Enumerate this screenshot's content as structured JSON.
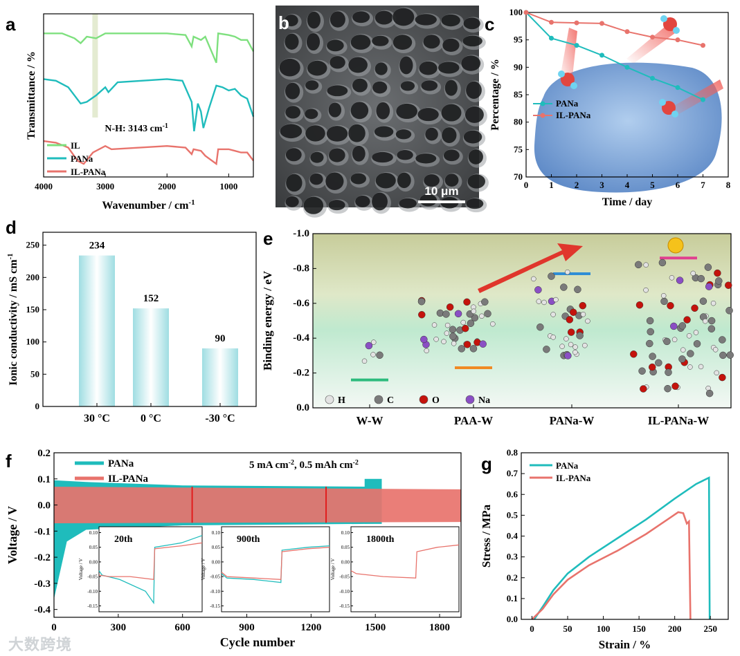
{
  "watermark": "大数跨境",
  "chart_data": [
    {
      "panel": "a",
      "type": "line",
      "xlabel": "Wavenumber / cm-1",
      "ylabel": "Transmittance / %",
      "x_ticks": [
        "4000",
        "3000",
        "2000",
        "1000"
      ],
      "xlim": [
        4000,
        600
      ],
      "annotation": "N-H: 3143 cm-1",
      "annotation_wavenumber": 3143,
      "legend": [
        "IL",
        "PANa",
        "IL-PANa"
      ],
      "colors": [
        "#7ee07e",
        "#1fbcbc",
        "#e8736c"
      ],
      "series": [
        {
          "name": "IL",
          "points": [
            [
              4000,
              88
            ],
            [
              3700,
              88
            ],
            [
              3500,
              85
            ],
            [
              3400,
              82
            ],
            [
              3300,
              86
            ],
            [
              3150,
              85
            ],
            [
              3000,
              88
            ],
            [
              2000,
              88
            ],
            [
              1700,
              87
            ],
            [
              1600,
              80
            ],
            [
              1570,
              86
            ],
            [
              1450,
              84
            ],
            [
              1380,
              86
            ],
            [
              1200,
              70
            ],
            [
              1170,
              88
            ],
            [
              1000,
              87
            ],
            [
              900,
              86
            ],
            [
              800,
              84
            ],
            [
              700,
              84
            ],
            [
              600,
              77
            ]
          ]
        },
        {
          "name": "PANa",
          "points": [
            [
              4000,
              60
            ],
            [
              3800,
              59
            ],
            [
              3600,
              55
            ],
            [
              3400,
              45
            ],
            [
              3300,
              46
            ],
            [
              3150,
              50
            ],
            [
              3000,
              55
            ],
            [
              2950,
              52
            ],
            [
              2800,
              58
            ],
            [
              2000,
              60
            ],
            [
              1750,
              59
            ],
            [
              1600,
              46
            ],
            [
              1560,
              28
            ],
            [
              1500,
              45
            ],
            [
              1450,
              40
            ],
            [
              1410,
              30
            ],
            [
              1320,
              42
            ],
            [
              1200,
              56
            ],
            [
              1100,
              55
            ],
            [
              1000,
              53
            ],
            [
              900,
              54
            ],
            [
              800,
              50
            ],
            [
              700,
              48
            ],
            [
              600,
              37
            ]
          ]
        },
        {
          "name": "IL-PANa",
          "points": [
            [
              4000,
              22
            ],
            [
              3800,
              21
            ],
            [
              3600,
              18
            ],
            [
              3450,
              10
            ],
            [
              3350,
              8
            ],
            [
              3200,
              15
            ],
            [
              3000,
              19
            ],
            [
              2900,
              17
            ],
            [
              2000,
              19
            ],
            [
              1700,
              18
            ],
            [
              1600,
              14
            ],
            [
              1570,
              17
            ],
            [
              1450,
              16
            ],
            [
              1380,
              13
            ],
            [
              1200,
              8
            ],
            [
              1170,
              17
            ],
            [
              1000,
              17
            ],
            [
              900,
              16
            ],
            [
              800,
              15
            ],
            [
              700,
              15
            ],
            [
              600,
              10
            ]
          ]
        }
      ]
    },
    {
      "panel": "b",
      "type": "image",
      "scale_label": "10 μm"
    },
    {
      "panel": "c",
      "type": "line",
      "xlabel": "Time / day",
      "ylabel": "Percentage / %",
      "xlim": [
        0,
        8
      ],
      "ylim": [
        70,
        100
      ],
      "x_ticks": [
        "0",
        "1",
        "2",
        "3",
        "4",
        "5",
        "6",
        "7",
        "8"
      ],
      "y_ticks": [
        "70",
        "75",
        "80",
        "85",
        "90",
        "95",
        "100"
      ],
      "legend": [
        "PANa",
        "IL-PANa"
      ],
      "colors": [
        "#1fbcbc",
        "#e8736c"
      ],
      "series": [
        {
          "name": "PANa",
          "x": [
            0,
            1,
            2,
            3,
            4,
            5,
            6,
            7
          ],
          "values": [
            100,
            95.3,
            94,
            92.2,
            90,
            88,
            86.3,
            84.1
          ]
        },
        {
          "name": "IL-PANa",
          "x": [
            0,
            1,
            2,
            3,
            4,
            5,
            6,
            7
          ],
          "values": [
            100,
            98.2,
            98.1,
            98,
            96.5,
            95.5,
            95,
            94
          ]
        }
      ]
    },
    {
      "panel": "d",
      "type": "bar",
      "ylabel": "Ionic conductivity / mS cm-1",
      "ylim": [
        0,
        270
      ],
      "y_ticks": [
        "0",
        "50",
        "100",
        "150",
        "200",
        "250"
      ],
      "categories": [
        "30 °C",
        "0 °C",
        "-30 °C"
      ],
      "values": [
        234,
        152,
        90
      ],
      "value_labels": [
        "234",
        "152",
        "90"
      ],
      "color": "#a8e3e6"
    },
    {
      "panel": "e",
      "type": "scatter",
      "ylabel": "Binding energy / eV",
      "ylim": [
        0,
        -1.0
      ],
      "y_ticks": [
        "0.0",
        "-0.2",
        "-0.4",
        "-0.6",
        "-0.8",
        "-1.0"
      ],
      "categories": [
        "W-W",
        "PAA-W",
        "PANa-W",
        "IL-PANa-W"
      ],
      "values": [
        -0.16,
        -0.23,
        -0.77,
        -0.86
      ],
      "colors": [
        "#2dbb7d",
        "#f08a24",
        "#2f8ed6",
        "#e0408f"
      ],
      "atom_legend": [
        "H",
        "C",
        "O",
        "Na"
      ],
      "atom_colors": [
        "#e3e3e3",
        "#7a7a7a",
        "#c4130c",
        "#8a4fc4"
      ]
    },
    {
      "panel": "f",
      "type": "line",
      "xlabel": "Cycle number",
      "ylabel": "Voltage / V",
      "xlim": [
        0,
        1900
      ],
      "ylim": [
        -0.43,
        0.2
      ],
      "x_ticks": [
        "0",
        "300",
        "600",
        "900",
        "1200",
        "1500",
        "1800"
      ],
      "y_ticks": [
        "0.2",
        "0.1",
        "0.0",
        "-0.1",
        "-0.2",
        "-0.3",
        "-0.4"
      ],
      "legend": [
        "PANa",
        "IL-PANa"
      ],
      "colors": [
        "#1fbcbc",
        "#e8736c"
      ],
      "condition": "5 mA cm-2, 0.5 mAh cm-2",
      "series": [
        {
          "name": "PANa",
          "end_cycle": 1530,
          "upper": [
            [
              0,
              0.095
            ],
            [
              150,
              0.088
            ],
            [
              600,
              0.075
            ],
            [
              1500,
              0.07
            ]
          ],
          "lower": [
            [
              0,
              -0.36
            ],
            [
              60,
              -0.14
            ],
            [
              150,
              -0.095
            ],
            [
              600,
              -0.078
            ],
            [
              1500,
              -0.072
            ]
          ]
        },
        {
          "name": "IL-PANa",
          "end_cycle": 1900,
          "upper": [
            [
              0,
              0.07
            ],
            [
              1900,
              0.06
            ]
          ],
          "lower": [
            [
              0,
              -0.07
            ],
            [
              1900,
              -0.065
            ]
          ]
        }
      ],
      "insets": [
        {
          "label": "20th",
          "y_ticks": [
            "0.10",
            "0.05",
            "0.00",
            "-0.05",
            "-0.10",
            "-0.15"
          ],
          "ylabel": "Voltage / V",
          "series": [
            {
              "name": "PANa",
              "points": [
                [
                  0,
                  -0.03
                ],
                [
                  0.03,
                  -0.045
                ],
                [
                  0.2,
                  -0.06
                ],
                [
                  0.45,
                  -0.1
                ],
                [
                  0.53,
                  -0.14
                ],
                [
                  0.54,
                  0.05
                ],
                [
                  0.8,
                  0.065
                ],
                [
                  1,
                  0.09
                ]
              ]
            },
            {
              "name": "IL-PANa",
              "points": [
                [
                  0,
                  -0.045
                ],
                [
                  0.1,
                  -0.05
                ],
                [
                  0.3,
                  -0.05
                ],
                [
                  0.53,
                  -0.06
                ],
                [
                  0.54,
                  0.045
                ],
                [
                  0.8,
                  0.055
                ],
                [
                  1,
                  0.065
                ]
              ]
            }
          ]
        },
        {
          "label": "900th",
          "y_ticks": [
            "0.10",
            "0.05",
            "0.00",
            "-0.05",
            "-0.10",
            "-0.15"
          ],
          "ylabel": "Voltage / V",
          "series": [
            {
              "name": "PANa",
              "points": [
                [
                  0,
                  -0.04
                ],
                [
                  0.05,
                  -0.055
                ],
                [
                  0.3,
                  -0.06
                ],
                [
                  0.55,
                  -0.07
                ],
                [
                  0.56,
                  0.04
                ],
                [
                  0.8,
                  0.05
                ],
                [
                  1,
                  0.055
                ]
              ]
            },
            {
              "name": "IL-PANa",
              "points": [
                [
                  0,
                  -0.035
                ],
                [
                  0.05,
                  -0.05
                ],
                [
                  0.3,
                  -0.055
                ],
                [
                  0.55,
                  -0.06
                ],
                [
                  0.56,
                  0.035
                ],
                [
                  0.8,
                  0.045
                ],
                [
                  1,
                  0.05
                ]
              ]
            }
          ]
        },
        {
          "label": "1800th",
          "y_ticks": [
            "0.10",
            "0.05",
            "0.00",
            "-0.05",
            "-0.10",
            "-0.15"
          ],
          "ylabel": "Voltage / V",
          "series": [
            {
              "name": "IL-PANa",
              "points": [
                [
                  0,
                  -0.03
                ],
                [
                  0.05,
                  -0.04
                ],
                [
                  0.3,
                  -0.05
                ],
                [
                  0.6,
                  -0.055
                ],
                [
                  0.61,
                  0.035
                ],
                [
                  0.8,
                  0.05
                ],
                [
                  1,
                  0.058
                ]
              ]
            }
          ]
        }
      ]
    },
    {
      "panel": "g",
      "type": "line",
      "xlabel": "Strain / %",
      "ylabel": "Stress / MPa",
      "xlim": [
        -15,
        275
      ],
      "ylim": [
        0,
        0.8
      ],
      "x_ticks": [
        "0",
        "50",
        "100",
        "150",
        "200",
        "250"
      ],
      "y_ticks": [
        "0.0",
        "0.1",
        "0.2",
        "0.3",
        "0.4",
        "0.5",
        "0.6",
        "0.7",
        "0.8"
      ],
      "legend": [
        "PANa",
        "IL-PANa"
      ],
      "colors": [
        "#1fbcbc",
        "#e8736c"
      ],
      "series": [
        {
          "name": "PANa",
          "points": [
            [
              3,
              0
            ],
            [
              15,
              0.06
            ],
            [
              30,
              0.14
            ],
            [
              50,
              0.22
            ],
            [
              80,
              0.3
            ],
            [
              120,
              0.39
            ],
            [
              160,
              0.48
            ],
            [
              200,
              0.58
            ],
            [
              230,
              0.65
            ],
            [
              248,
              0.68
            ],
            [
              249,
              0
            ]
          ]
        },
        {
          "name": "IL-PANa",
          "points": [
            [
              0,
              0
            ],
            [
              15,
              0.05
            ],
            [
              30,
              0.12
            ],
            [
              50,
              0.19
            ],
            [
              80,
              0.26
            ],
            [
              120,
              0.33
            ],
            [
              160,
              0.41
            ],
            [
              190,
              0.48
            ],
            [
              205,
              0.515
            ],
            [
              212,
              0.51
            ],
            [
              217,
              0.46
            ],
            [
              220,
              0.47
            ],
            [
              222,
              0
            ]
          ]
        }
      ]
    }
  ]
}
